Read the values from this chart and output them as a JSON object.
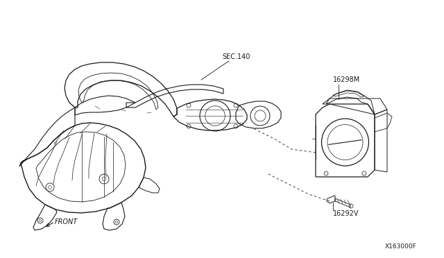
{
  "background_color": "#ffffff",
  "line_color": "#1a1a1a",
  "labels": {
    "sec140": "SEC.140",
    "part1": "16298M",
    "part2": "16292V",
    "front": "FRONT",
    "diagram_id": "X163000F"
  },
  "font_size": 7.0,
  "fig_width": 6.4,
  "fig_height": 3.72,
  "dpi": 100
}
